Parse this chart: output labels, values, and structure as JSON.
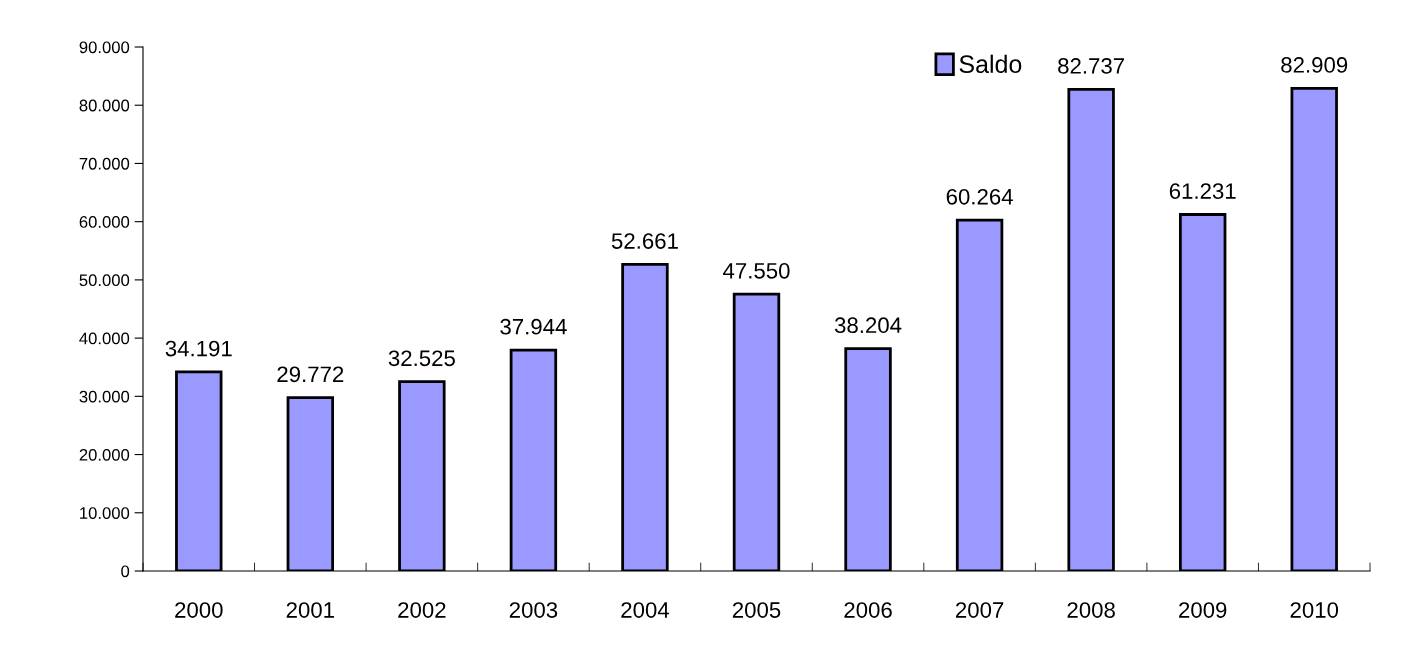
{
  "chart_data": {
    "type": "bar",
    "categories": [
      "2000",
      "2001",
      "2002",
      "2003",
      "2004",
      "2005",
      "2006",
      "2007",
      "2008",
      "2009",
      "2010"
    ],
    "series": [
      {
        "name": "Saldo",
        "color": "#9999ff",
        "values": [
          34191,
          29772,
          32525,
          37944,
          52661,
          47550,
          38204,
          60264,
          82737,
          61231,
          82909
        ],
        "value_labels": [
          "34.191",
          "29.772",
          "32.525",
          "37.944",
          "52.661",
          "47.550",
          "38.204",
          "60.264",
          "82.737",
          "61.231",
          "82.909"
        ]
      }
    ],
    "ylim": [
      0,
      90000
    ],
    "yticks": [
      0,
      {
        "value": 10000,
        "label": "10.000"
      },
      {
        "value": 20000,
        "label": "20.000"
      },
      {
        "value": 30000,
        "label": "30.000"
      },
      {
        "value": 40000,
        "label": "40.000"
      },
      {
        "value": 50000,
        "label": "50.000"
      },
      {
        "value": 60000,
        "label": "60.000"
      },
      {
        "value": 70000,
        "label": "70.000"
      },
      {
        "value": 80000,
        "label": "80.000"
      },
      {
        "value": 90000,
        "label": "90.000"
      }
    ],
    "grid": false,
    "legend": "top right"
  }
}
